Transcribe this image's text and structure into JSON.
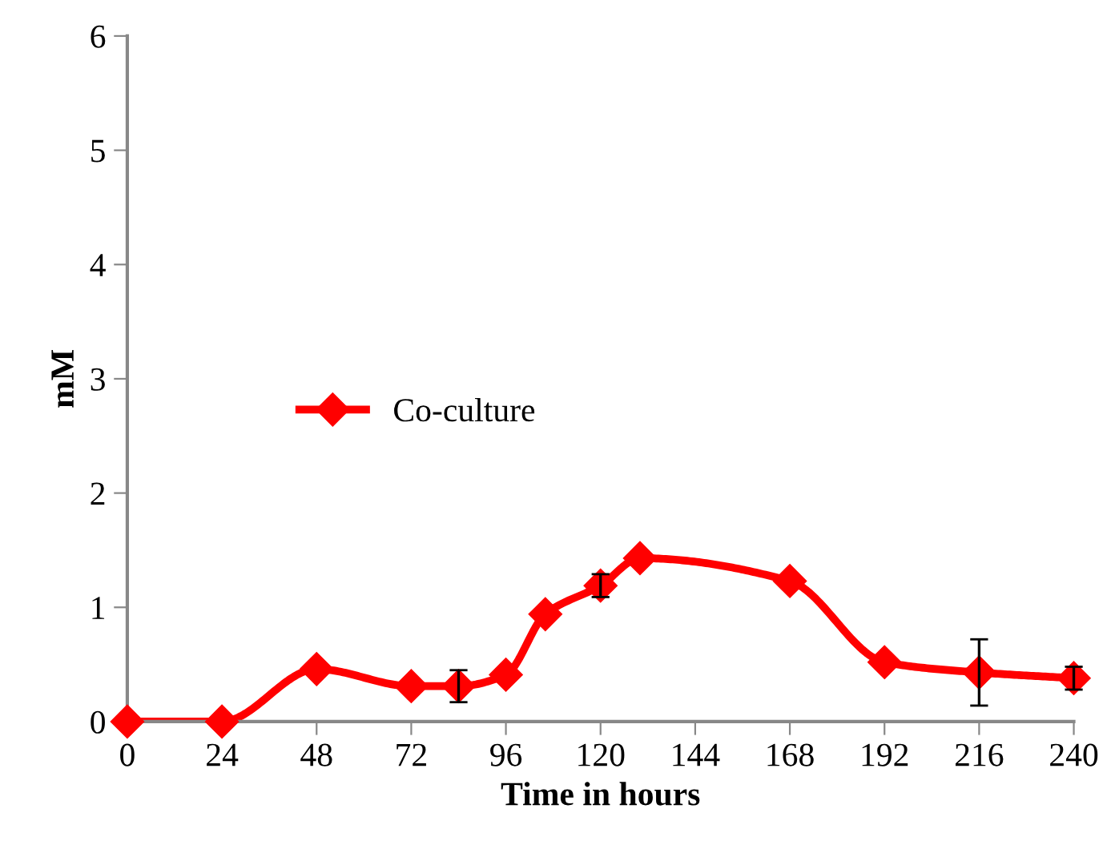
{
  "chart_data": {
    "type": "line",
    "xlabel": "Time in hours",
    "ylabel": "mM",
    "xlim": [
      0,
      240
    ],
    "xticks": [
      0,
      24,
      48,
      72,
      96,
      120,
      144,
      168,
      192,
      216,
      240
    ],
    "ylim": [
      0,
      6
    ],
    "yticks": [
      0,
      1,
      2,
      3,
      4,
      5,
      6
    ],
    "grid": false,
    "legend": "center left",
    "marker": "diamond",
    "line_style": "solid",
    "series": [
      {
        "name": "Co-culture",
        "color": "#ff0000",
        "x": [
          0,
          24,
          48,
          72,
          84,
          96,
          106,
          120,
          130,
          168,
          192,
          216,
          240
        ],
        "values": [
          0,
          0,
          0.46,
          0.31,
          0.31,
          0.41,
          0.94,
          1.19,
          1.43,
          1.23,
          0.52,
          0.43,
          0.38
        ],
        "errors": [
          null,
          null,
          null,
          null,
          0.14,
          null,
          null,
          0.1,
          null,
          null,
          null,
          0.29,
          0.1
        ]
      }
    ]
  }
}
